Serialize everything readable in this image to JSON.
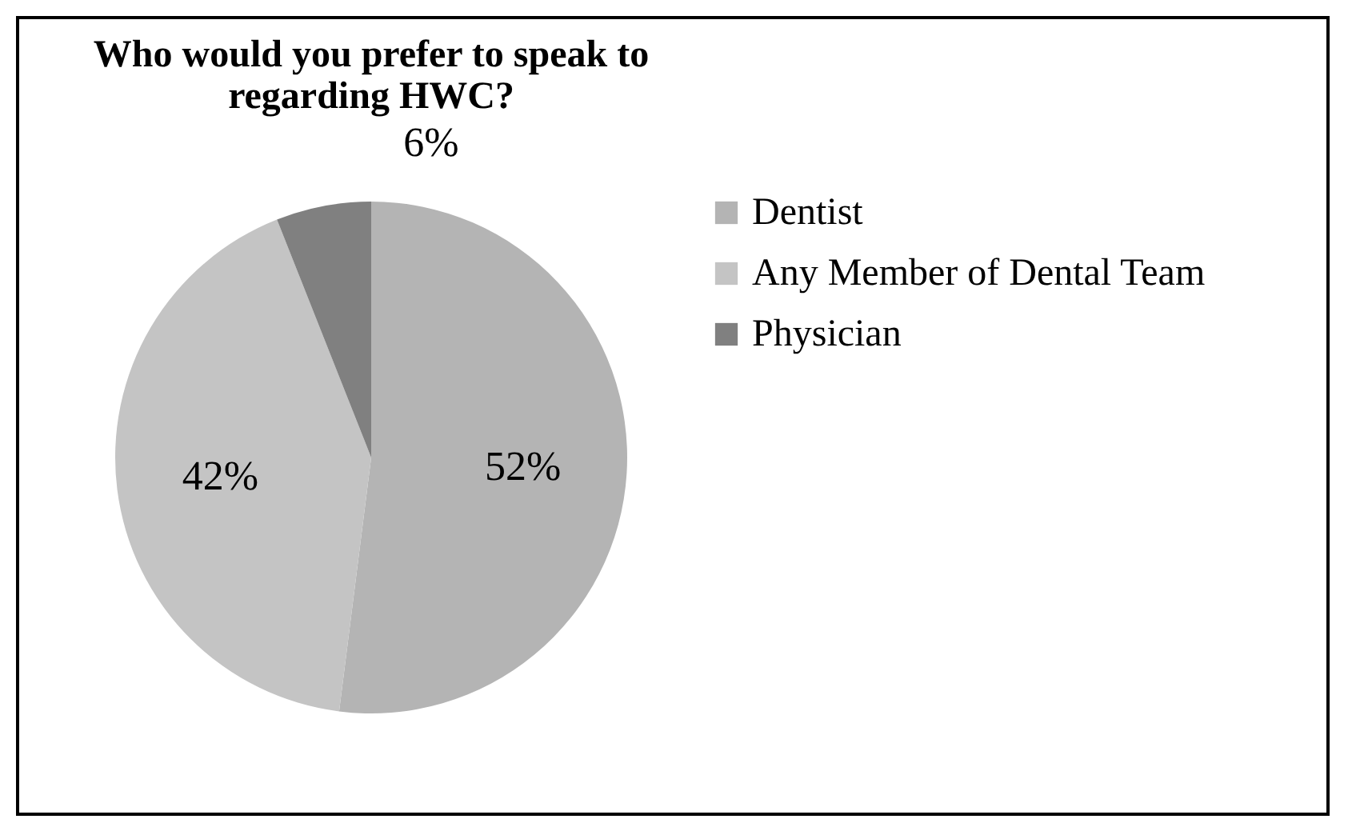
{
  "chart_data": {
    "type": "pie",
    "title": "Who would you prefer to speak to regarding HWC?",
    "categories": [
      "Dentist",
      "Any Member of Dental Team",
      "Physician"
    ],
    "values": [
      52,
      42,
      6
    ],
    "colors": [
      "#b4b4b4",
      "#c4c4c4",
      "#808080"
    ],
    "value_labels": [
      "52%",
      "42%",
      "6%"
    ],
    "legend": "right"
  }
}
